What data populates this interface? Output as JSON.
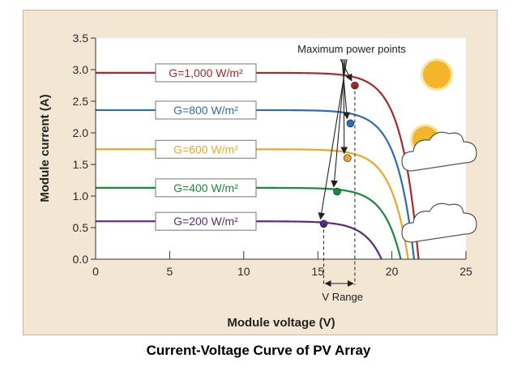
{
  "caption": "Current-Voltage Curve of PV Array",
  "chart_data": {
    "type": "line",
    "xlabel": "Module voltage (V)",
    "ylabel": "Module current (A)",
    "xlim": [
      0,
      25
    ],
    "ylim": [
      0,
      3.5
    ],
    "xticks": [
      "0",
      "5",
      "10",
      "15",
      "20",
      "25"
    ],
    "yticks": [
      "0.0",
      "0.5",
      "1.0",
      "1.5",
      "2.0",
      "2.5",
      "3.0",
      "3.5"
    ],
    "grid": false,
    "series": [
      {
        "name": "G=1,000 W/m²",
        "color": "#b0262c",
        "isc": 2.95,
        "voc": 21.8,
        "mpp": {
          "x": 17.5,
          "y": 2.75
        }
      },
      {
        "name": "G=800 W/m²",
        "color": "#2e6db5",
        "isc": 2.36,
        "voc": 21.5,
        "mpp": {
          "x": 17.2,
          "y": 2.15
        }
      },
      {
        "name": "G=600 W/m²",
        "color": "#f0a623",
        "isc": 1.74,
        "voc": 21.1,
        "mpp": {
          "x": 17.0,
          "y": 1.6
        }
      },
      {
        "name": "G=400 W/m²",
        "color": "#178a3e",
        "isc": 1.13,
        "voc": 20.6,
        "mpp": {
          "x": 16.3,
          "y": 1.07
        }
      },
      {
        "name": "G=200 W/m²",
        "color": "#5b2a86",
        "isc": 0.6,
        "voc": 19.3,
        "mpp": {
          "x": 15.4,
          "y": 0.56
        }
      }
    ],
    "annotations": {
      "mpp_label": "Maximum power points",
      "v_range_label": "V Range",
      "v_range": [
        15.4,
        17.5
      ]
    },
    "icons": [
      "sun-icon",
      "partly-cloudy-icon",
      "cloud-icon"
    ]
  }
}
